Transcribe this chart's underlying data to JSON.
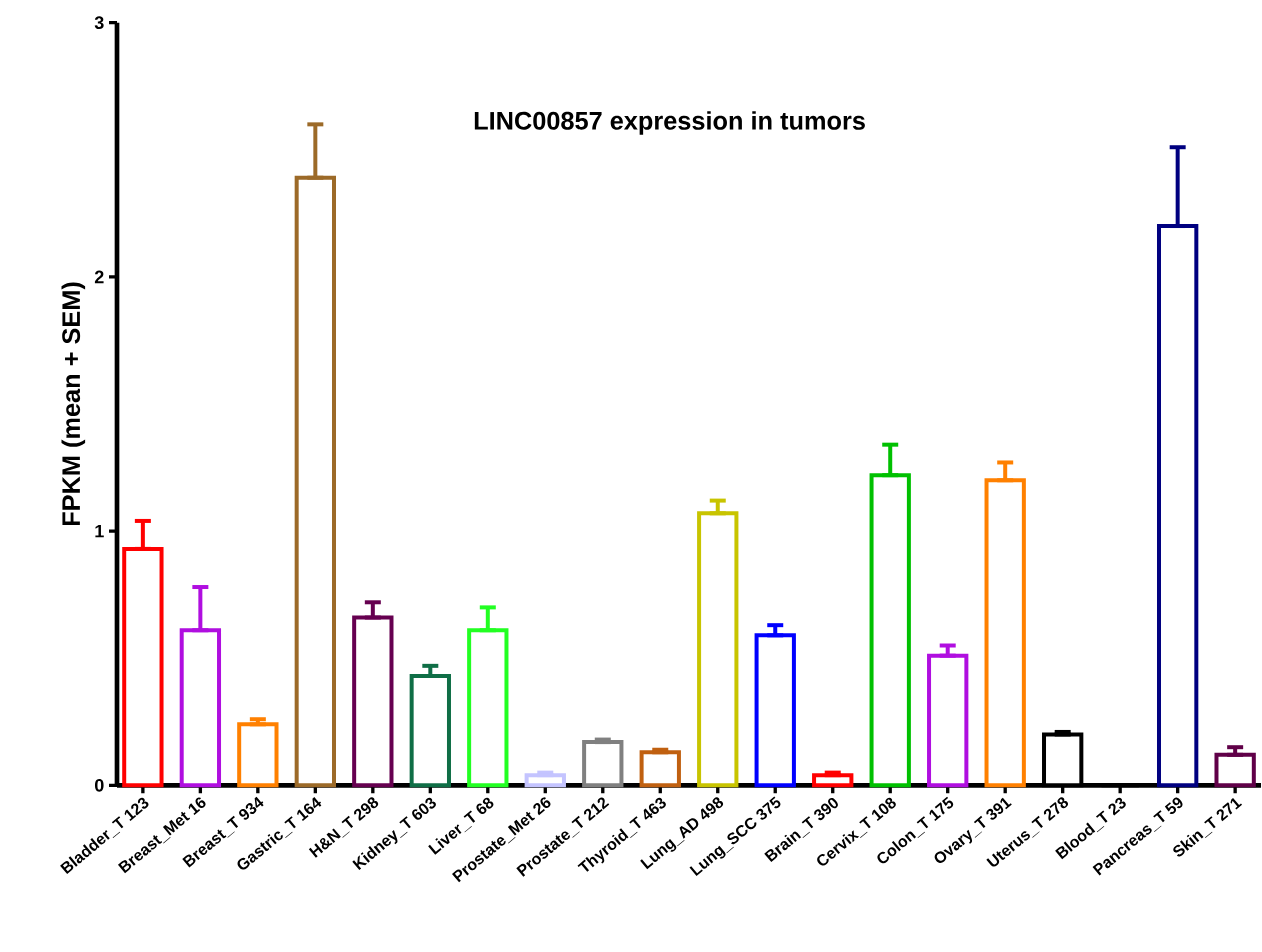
{
  "chart_data": {
    "type": "bar",
    "title": "LINC00857 expression in tumors",
    "ylabel": "FPKM (mean + SEM)",
    "categories": [
      "Bladder_T 123",
      "Breast_Met 16",
      "Breast_T 934",
      "Gastric_T 164",
      "H&N_T 298",
      "Kidney_T 603",
      "Liver_T 68",
      "Prostate_Met 26",
      "Prostate_T 212",
      "Thyroid_T 463",
      "Lung_AD 498",
      "Lung_SCC 375",
      "Brain_T 390",
      "Cervix_T 108",
      "Colon_T 175",
      "Ovary_T 391",
      "Uterus_T 278",
      "Blood_T 23",
      "Pancreas_T 59",
      "Skin_T 271"
    ],
    "values": [
      0.93,
      0.61,
      0.24,
      2.39,
      0.66,
      0.43,
      0.61,
      0.04,
      0.17,
      0.13,
      1.07,
      0.59,
      0.04,
      1.22,
      0.51,
      1.2,
      0.2,
      0,
      2.2,
      0.12
    ],
    "errors": [
      [
        0.93,
        1.04
      ],
      [
        0.61,
        0.78
      ],
      [
        0.24,
        0.26
      ],
      [
        2.39,
        2.6
      ],
      [
        0.66,
        0.72
      ],
      [
        0.43,
        0.47
      ],
      [
        0.61,
        0.7
      ],
      [
        0.04,
        0.05
      ],
      [
        0.17,
        0.18
      ],
      [
        0.13,
        0.14
      ],
      [
        1.07,
        1.12
      ],
      [
        0.59,
        0.63
      ],
      [
        0.04,
        0.05
      ],
      [
        1.22,
        1.34
      ],
      [
        0.51,
        0.55
      ],
      [
        1.2,
        1.27
      ],
      [
        0.2,
        0.21
      ],
      null,
      [
        2.2,
        2.51
      ],
      [
        0.12,
        0.15
      ]
    ],
    "colors": [
      "#ff0000",
      "#b00ee0",
      "#ff8000",
      "#9c6a28",
      "#660050",
      "#0f6e46",
      "#22ff22",
      "#c4c4ff",
      "#808080",
      "#c06010",
      "#c8c400",
      "#0000ff",
      "#ff0000",
      "#00c000",
      "#b00ee0",
      "#ff8000",
      "#000000",
      "#000000",
      "#000080",
      "#600048"
    ],
    "ylim": [
      0,
      3
    ],
    "yticks": [
      0,
      1,
      2,
      3
    ]
  }
}
